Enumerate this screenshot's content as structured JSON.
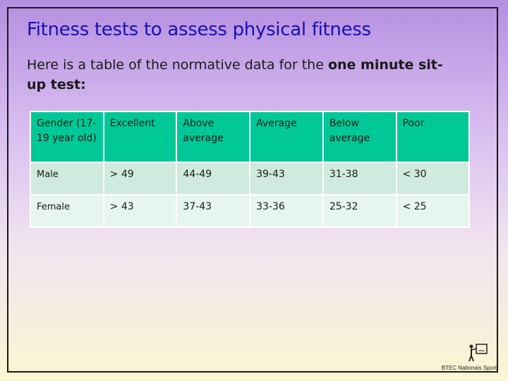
{
  "slide": {
    "title": "Fitness tests to assess physical fitness",
    "intro_before": "Here is a table of the normative data for the ",
    "intro_bold": "one minute sit-up test:"
  },
  "table": {
    "headers": [
      "Gender (17-19 year old)",
      "Excellent",
      "Above average",
      "Average",
      "Below average",
      "Poor"
    ],
    "rows": [
      [
        "Male",
        "> 49",
        "44-49",
        "39-43",
        "31-38",
        "< 30"
      ],
      [
        "Female",
        "> 43",
        "37-43",
        "33-36",
        "25-32",
        "< 25"
      ]
    ]
  },
  "logo": {
    "text": "BTEC Nationals Sport",
    "icon": "presenter-at-board-icon"
  },
  "colors": {
    "title": "#1a0fb0",
    "header_bg": "#00c896",
    "row1_bg": "#cfeade",
    "row2_bg": "#e7f5ef"
  }
}
